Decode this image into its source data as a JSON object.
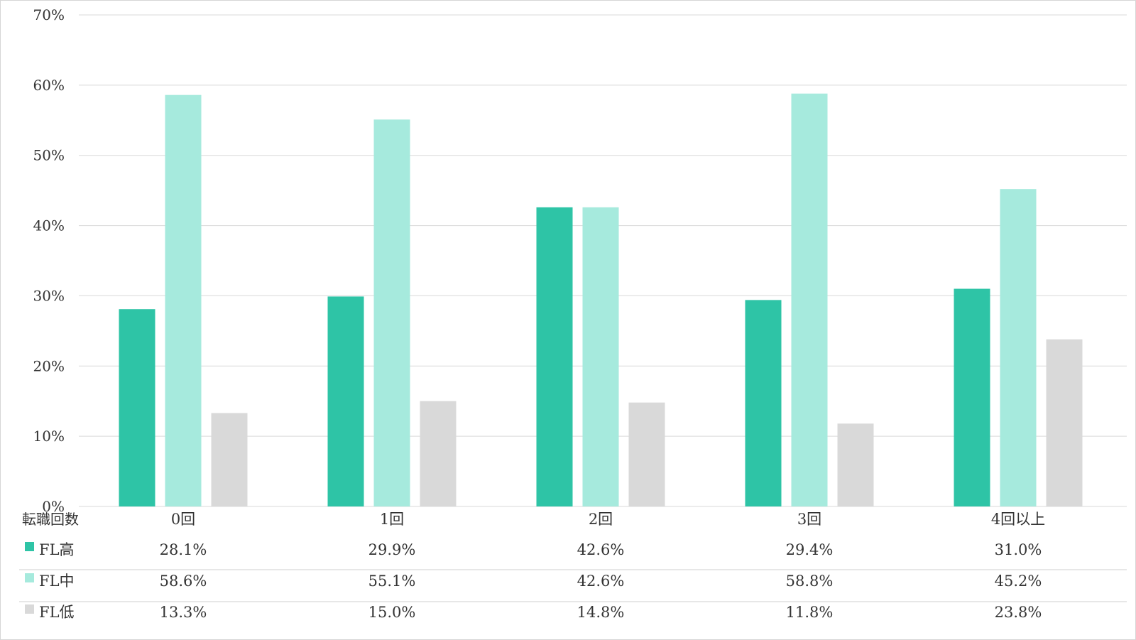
{
  "chart_data": {
    "type": "bar",
    "title": "",
    "xlabel": "",
    "ylabel": "",
    "ylim": [
      0,
      70
    ],
    "y_ticks": [
      "0%",
      "10%",
      "20%",
      "30%",
      "40%",
      "50%",
      "60%",
      "70%"
    ],
    "y_tick_values": [
      0,
      10,
      20,
      30,
      40,
      50,
      60,
      70
    ],
    "grid": true,
    "legend_placement": "data-table-below",
    "table_header": "転職回数",
    "categories": [
      "0回",
      "1回",
      "2回",
      "3回",
      "4回以上"
    ],
    "series": [
      {
        "name": "FL高",
        "color": "#2ec4a6",
        "values": [
          28.1,
          29.9,
          42.6,
          29.4,
          31.0
        ],
        "labels": [
          "28.1%",
          "29.9%",
          "42.6%",
          "29.4%",
          "31.0%"
        ]
      },
      {
        "name": "FL中",
        "color": "#a6eadd",
        "values": [
          58.6,
          55.1,
          42.6,
          58.8,
          45.2
        ],
        "labels": [
          "58.6%",
          "55.1%",
          "42.6%",
          "58.8%",
          "45.2%"
        ]
      },
      {
        "name": "FL低",
        "color": "#d9d9d9",
        "values": [
          13.3,
          15.0,
          14.8,
          11.8,
          23.8
        ],
        "labels": [
          "13.3%",
          "15.0%",
          "14.8%",
          "11.8%",
          "23.8%"
        ]
      }
    ]
  }
}
